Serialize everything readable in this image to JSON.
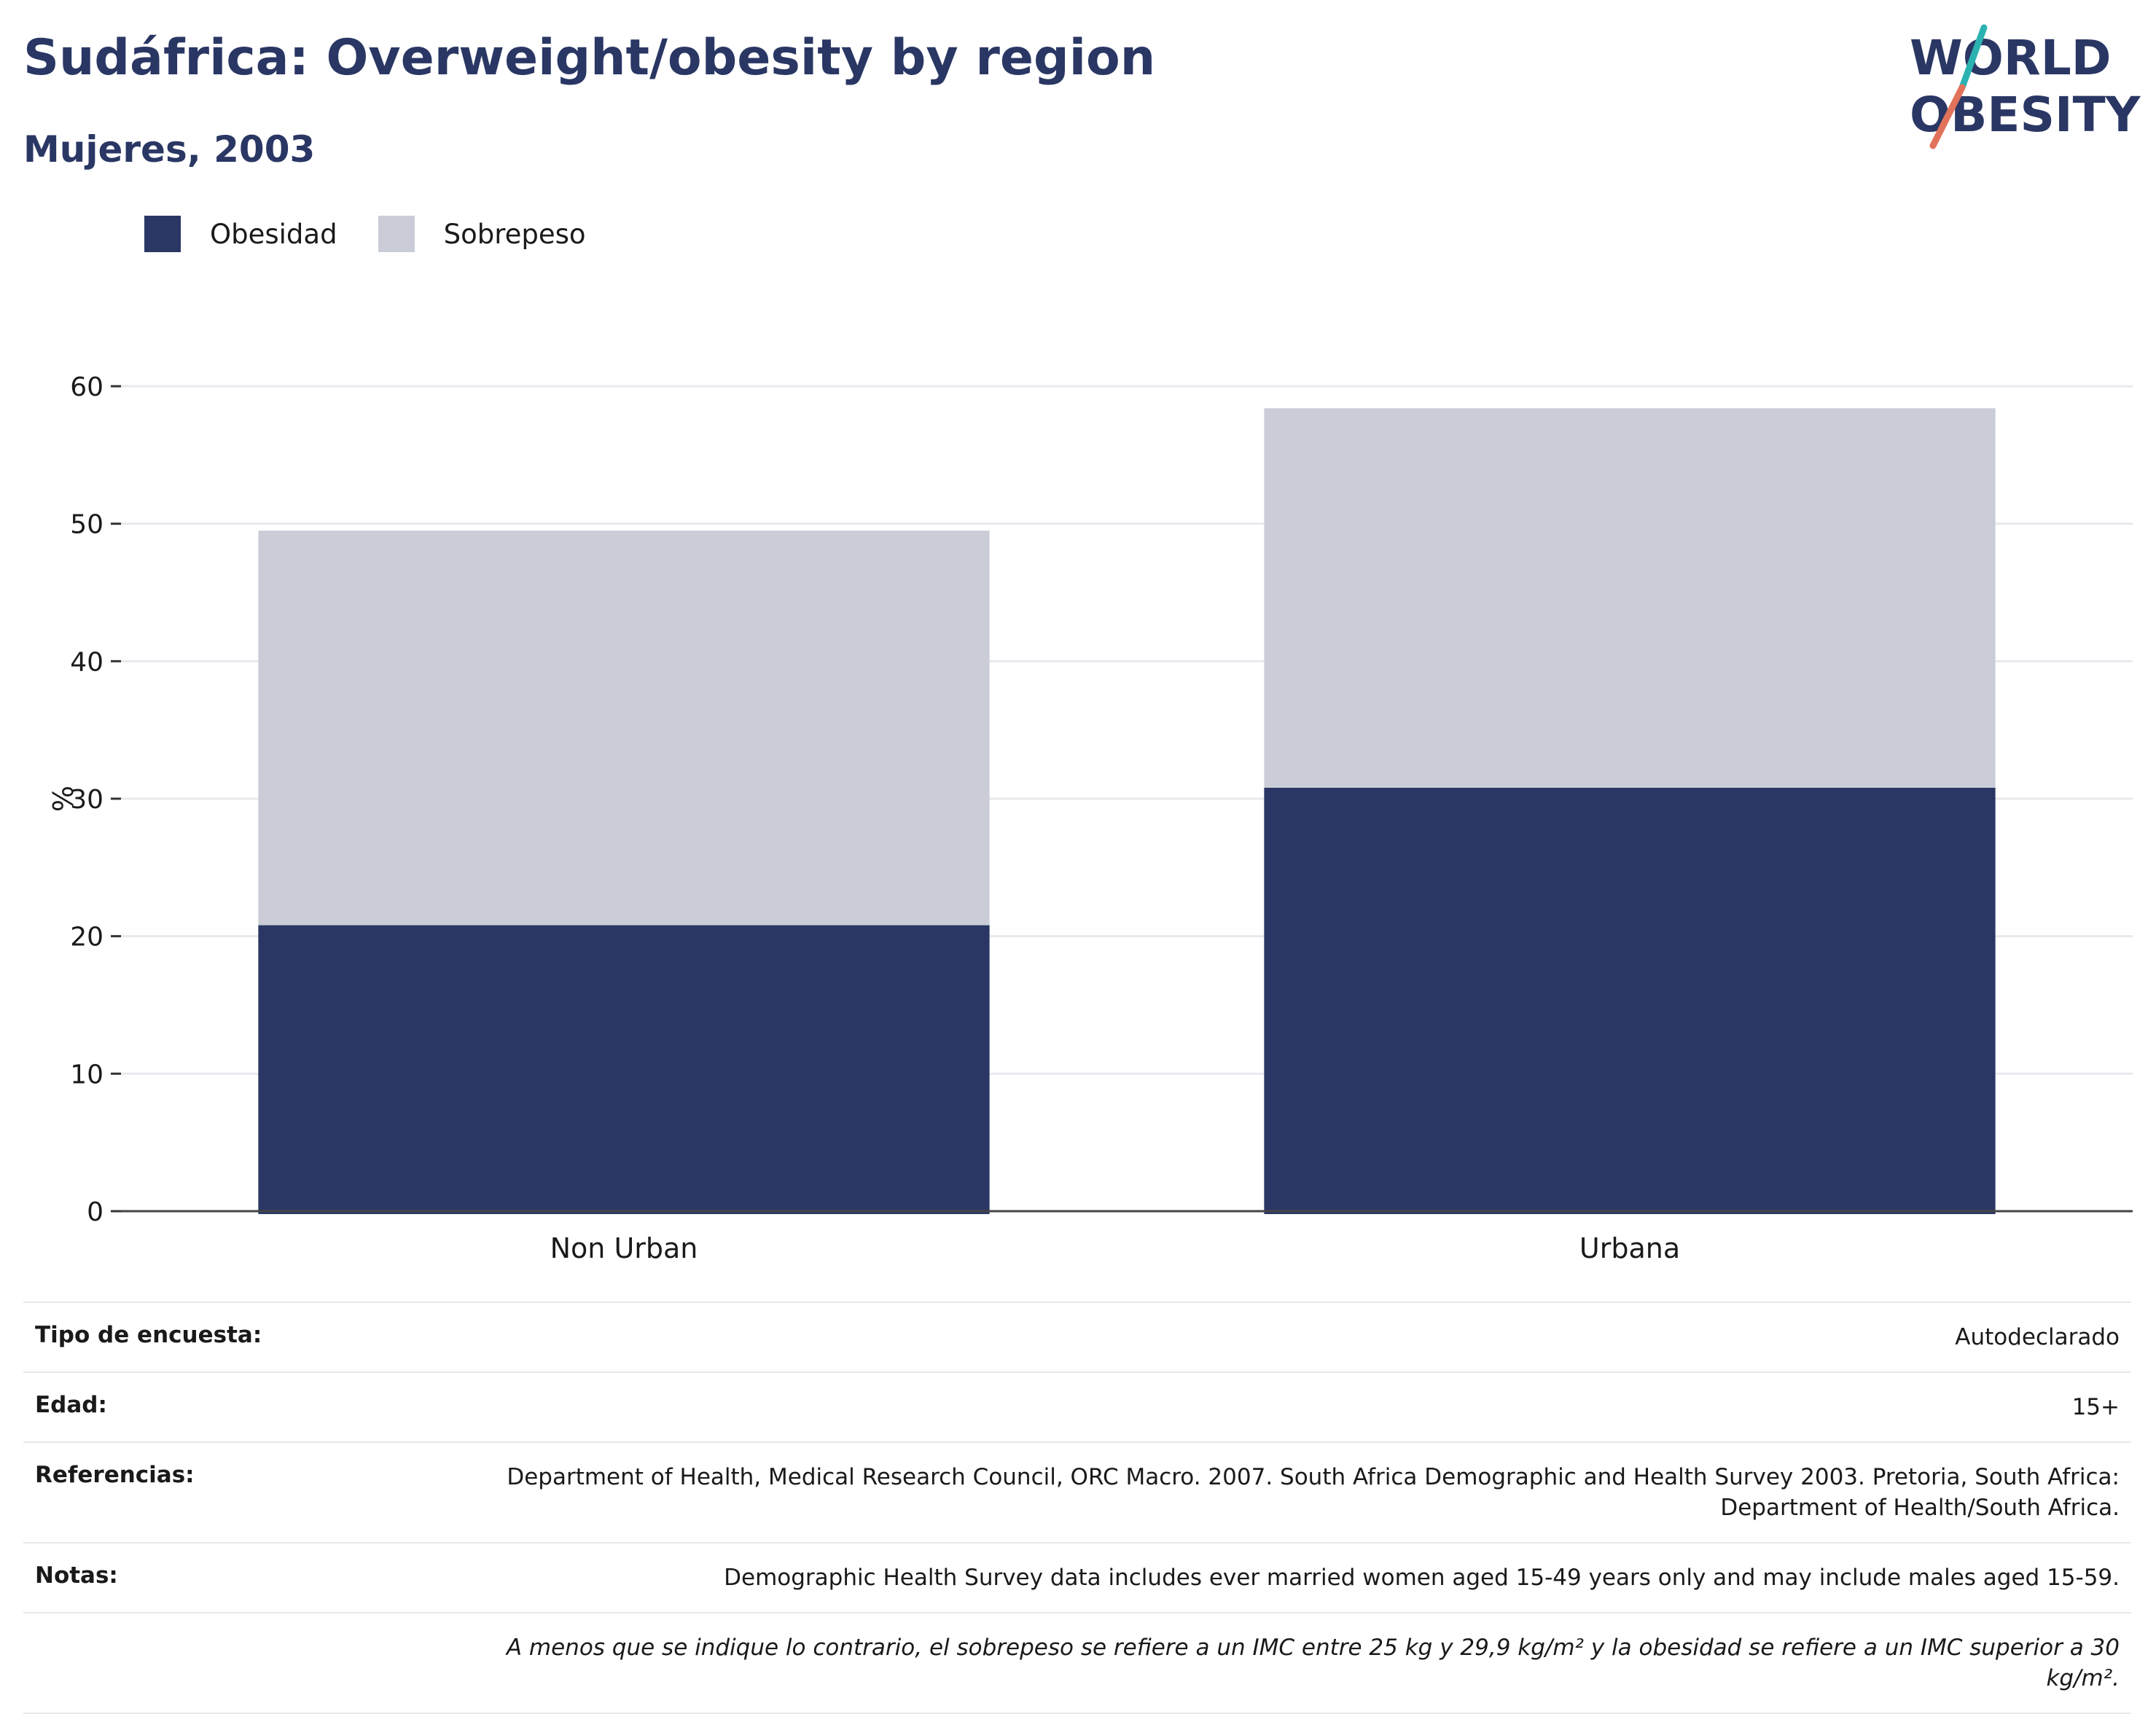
{
  "header": {
    "title": "Sudáfrica: Overweight/obesity by region",
    "subtitle": "Mujeres, 2003"
  },
  "logo": {
    "line1": "WORLD",
    "line2": "OBESITY"
  },
  "legend": [
    {
      "label": "Obesidad",
      "color": "#2a3764"
    },
    {
      "label": "Sobrepeso",
      "color": "#cacdd8"
    }
  ],
  "chart_data": {
    "type": "bar",
    "stacked": true,
    "categories": [
      "Non Urban",
      "Urbana"
    ],
    "series": [
      {
        "name": "Obesidad",
        "values": [
          20.8,
          30.8
        ],
        "color": "#2a3764"
      },
      {
        "name": "Sobrepeso",
        "values": [
          28.7,
          27.6
        ],
        "color": "#cacdd8"
      }
    ],
    "ylabel": "%",
    "ylim": [
      0,
      60
    ],
    "yticks": [
      0,
      10,
      20,
      30,
      40,
      50,
      60
    ],
    "grid": true,
    "legend_position": "top-left"
  },
  "meta": {
    "survey_label": "Tipo de encuesta:",
    "survey_value": "Autodeclarado",
    "age_label": "Edad:",
    "age_value": "15+",
    "refs_label": "Referencias:",
    "refs_value": "Department of Health, Medical Research Council, ORC Macro. 2007. South Africa Demographic and Health Survey 2003. Pretoria, South Africa: Department of Health/South Africa.",
    "notes_label": "Notas:",
    "notes_value": "Demographic Health Survey data includes ever married women aged 15-49 years only and may include males aged 15-59.",
    "disclaimer": "A menos que se indique lo contrario, el sobrepeso se refiere a un IMC entre 25 kg y 29,9 kg/m² y la obesidad se refiere a un IMC superior a 30 kg/m²."
  }
}
